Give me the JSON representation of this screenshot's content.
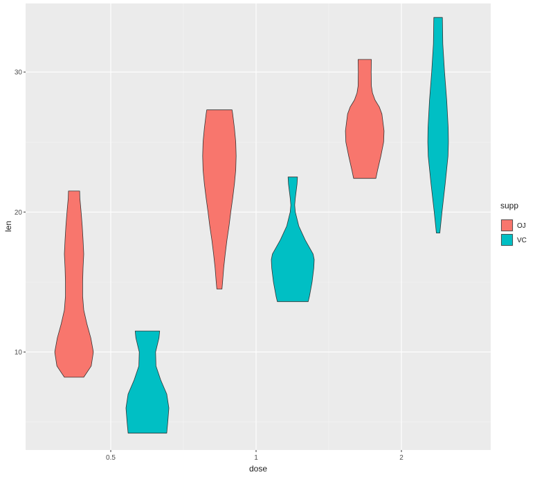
{
  "chart_data": {
    "type": "violin",
    "xlabel": "dose",
    "ylabel": "len",
    "categories": [
      "0.5",
      "1",
      "2"
    ],
    "ylim": [
      3.0,
      34.9
    ],
    "yticks": [
      10,
      20,
      30
    ],
    "grid": true,
    "legend": {
      "title": "supp",
      "position": "right"
    },
    "series": [
      {
        "name": "OJ",
        "color": "#F8766D",
        "groups": [
          {
            "dose": "0.5",
            "min": 8.2,
            "max": 21.5,
            "profile": [
              [
                8.2,
                0.45
              ],
              [
                9.0,
                0.8
              ],
              [
                10.0,
                0.9
              ],
              [
                11.0,
                0.78
              ],
              [
                12.0,
                0.6
              ],
              [
                13.0,
                0.45
              ],
              [
                14.0,
                0.4
              ],
              [
                15.0,
                0.4
              ],
              [
                16.0,
                0.42
              ],
              [
                17.0,
                0.45
              ],
              [
                18.0,
                0.42
              ],
              [
                19.0,
                0.38
              ],
              [
                20.0,
                0.33
              ],
              [
                21.0,
                0.27
              ],
              [
                21.5,
                0.26
              ]
            ]
          },
          {
            "dose": "1",
            "min": 14.5,
            "max": 27.3,
            "profile": [
              [
                14.5,
                0.12
              ],
              [
                15.0,
                0.15
              ],
              [
                16.0,
                0.2
              ],
              [
                17.0,
                0.27
              ],
              [
                18.0,
                0.35
              ],
              [
                19.0,
                0.45
              ],
              [
                20.0,
                0.53
              ],
              [
                21.0,
                0.62
              ],
              [
                22.0,
                0.7
              ],
              [
                23.0,
                0.76
              ],
              [
                24.0,
                0.78
              ],
              [
                25.0,
                0.76
              ],
              [
                26.0,
                0.7
              ],
              [
                27.0,
                0.62
              ],
              [
                27.3,
                0.59
              ]
            ]
          },
          {
            "dose": "2",
            "min": 22.4,
            "max": 30.9,
            "profile": [
              [
                22.4,
                0.52
              ],
              [
                23.0,
                0.6
              ],
              [
                24.0,
                0.75
              ],
              [
                25.0,
                0.88
              ],
              [
                25.8,
                0.9
              ],
              [
                27.0,
                0.8
              ],
              [
                27.5,
                0.68
              ],
              [
                28.0,
                0.48
              ],
              [
                28.5,
                0.36
              ],
              [
                29.0,
                0.31
              ],
              [
                30.0,
                0.3
              ],
              [
                30.9,
                0.31
              ]
            ]
          }
        ]
      },
      {
        "name": "VC",
        "color": "#00BFC4",
        "groups": [
          {
            "dose": "0.5",
            "min": 4.2,
            "max": 11.5,
            "profile": [
              [
                4.2,
                0.9
              ],
              [
                5.0,
                0.95
              ],
              [
                6.0,
                1.0
              ],
              [
                7.0,
                0.9
              ],
              [
                8.0,
                0.62
              ],
              [
                9.0,
                0.4
              ],
              [
                10.0,
                0.38
              ],
              [
                11.0,
                0.54
              ],
              [
                11.5,
                0.57
              ]
            ]
          },
          {
            "dose": "1",
            "min": 13.6,
            "max": 22.5,
            "profile": [
              [
                13.6,
                0.72
              ],
              [
                14.0,
                0.78
              ],
              [
                15.0,
                0.9
              ],
              [
                16.0,
                0.98
              ],
              [
                16.6,
                1.0
              ],
              [
                17.0,
                0.95
              ],
              [
                18.0,
                0.58
              ],
              [
                19.0,
                0.28
              ],
              [
                20.0,
                0.12
              ],
              [
                20.5,
                0.09
              ],
              [
                21.0,
                0.12
              ],
              [
                22.0,
                0.2
              ],
              [
                22.5,
                0.22
              ]
            ]
          },
          {
            "dose": "2",
            "min": 18.5,
            "max": 33.9,
            "profile": [
              [
                18.5,
                0.08
              ],
              [
                20.0,
                0.18
              ],
              [
                22.0,
                0.33
              ],
              [
                24.0,
                0.46
              ],
              [
                25.0,
                0.48
              ],
              [
                26.0,
                0.47
              ],
              [
                28.0,
                0.4
              ],
              [
                30.0,
                0.3
              ],
              [
                32.0,
                0.22
              ],
              [
                33.9,
                0.2
              ]
            ]
          }
        ]
      }
    ]
  }
}
